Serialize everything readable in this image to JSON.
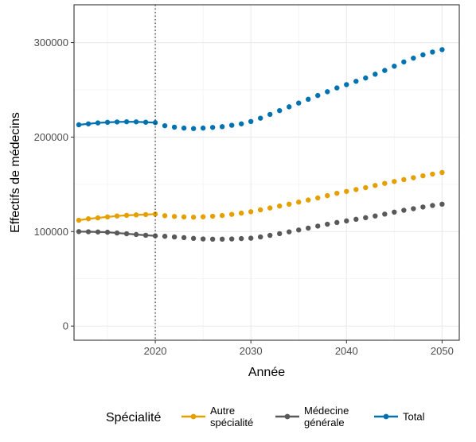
{
  "chart_data": {
    "type": "line",
    "xlabel": "Année",
    "ylabel": "Effectifs de médecins",
    "xlim": [
      2011.5,
      2051.8
    ],
    "ylim": [
      -15000,
      340000
    ],
    "x_ticks": [
      2020,
      2030,
      2040,
      2050
    ],
    "y_ticks": [
      0,
      100000,
      200000,
      300000
    ],
    "y_tick_labels": [
      "0",
      "100000",
      "200000",
      "300000"
    ],
    "vline": {
      "x": 2020,
      "style": "dotted"
    },
    "grid": true,
    "legend": {
      "title": "Spécialité",
      "position": "bottom",
      "entries": [
        {
          "label": [
            "Autre",
            "spécialité"
          ],
          "color": "#E69F00"
        },
        {
          "label": [
            "Médecine",
            "générale"
          ],
          "color": "#595959"
        },
        {
          "label": [
            "Total"
          ],
          "color": "#0072B2"
        }
      ]
    },
    "x": [
      2012,
      2013,
      2014,
      2015,
      2016,
      2017,
      2018,
      2019,
      2020,
      2021,
      2022,
      2023,
      2024,
      2025,
      2026,
      2027,
      2028,
      2029,
      2030,
      2031,
      2032,
      2033,
      2034,
      2035,
      2036,
      2037,
      2038,
      2039,
      2040,
      2041,
      2042,
      2043,
      2044,
      2045,
      2046,
      2047,
      2048,
      2049,
      2050
    ],
    "series": [
      {
        "name": "Autre spécialité",
        "color": "#E69F00",
        "values": [
          112000,
          113500,
          114500,
          115500,
          116500,
          117200,
          117600,
          118000,
          118500,
          116800,
          116000,
          115500,
          115200,
          115600,
          116200,
          117000,
          118200,
          119500,
          121000,
          123000,
          125000,
          127000,
          129000,
          131200,
          133400,
          135600,
          138000,
          140500,
          142500,
          144500,
          146500,
          148800,
          151000,
          153000,
          155000,
          157000,
          159000,
          160800,
          162500
        ]
      },
      {
        "name": "Médecine générale",
        "color": "#595959",
        "values": [
          100000,
          99800,
          99600,
          99300,
          98500,
          97700,
          96900,
          96100,
          95500,
          95000,
          94300,
          93600,
          92800,
          92200,
          92000,
          92000,
          92200,
          92600,
          93000,
          94300,
          96000,
          97800,
          99700,
          101700,
          103700,
          105800,
          107800,
          109600,
          111300,
          113000,
          114700,
          116500,
          118500,
          120600,
          122500,
          124200,
          126000,
          127600,
          129000
        ]
      },
      {
        "name": "Total",
        "color": "#0072B2",
        "values": [
          213000,
          214000,
          215000,
          215600,
          216000,
          216200,
          216100,
          215700,
          215300,
          212000,
          210500,
          209500,
          209000,
          209500,
          210200,
          211000,
          212500,
          214000,
          216500,
          220000,
          224000,
          228000,
          232000,
          236000,
          240000,
          244000,
          248000,
          252000,
          255500,
          259000,
          262500,
          266500,
          270500,
          275000,
          279500,
          283500,
          287000,
          290000,
          292500
        ]
      }
    ]
  }
}
